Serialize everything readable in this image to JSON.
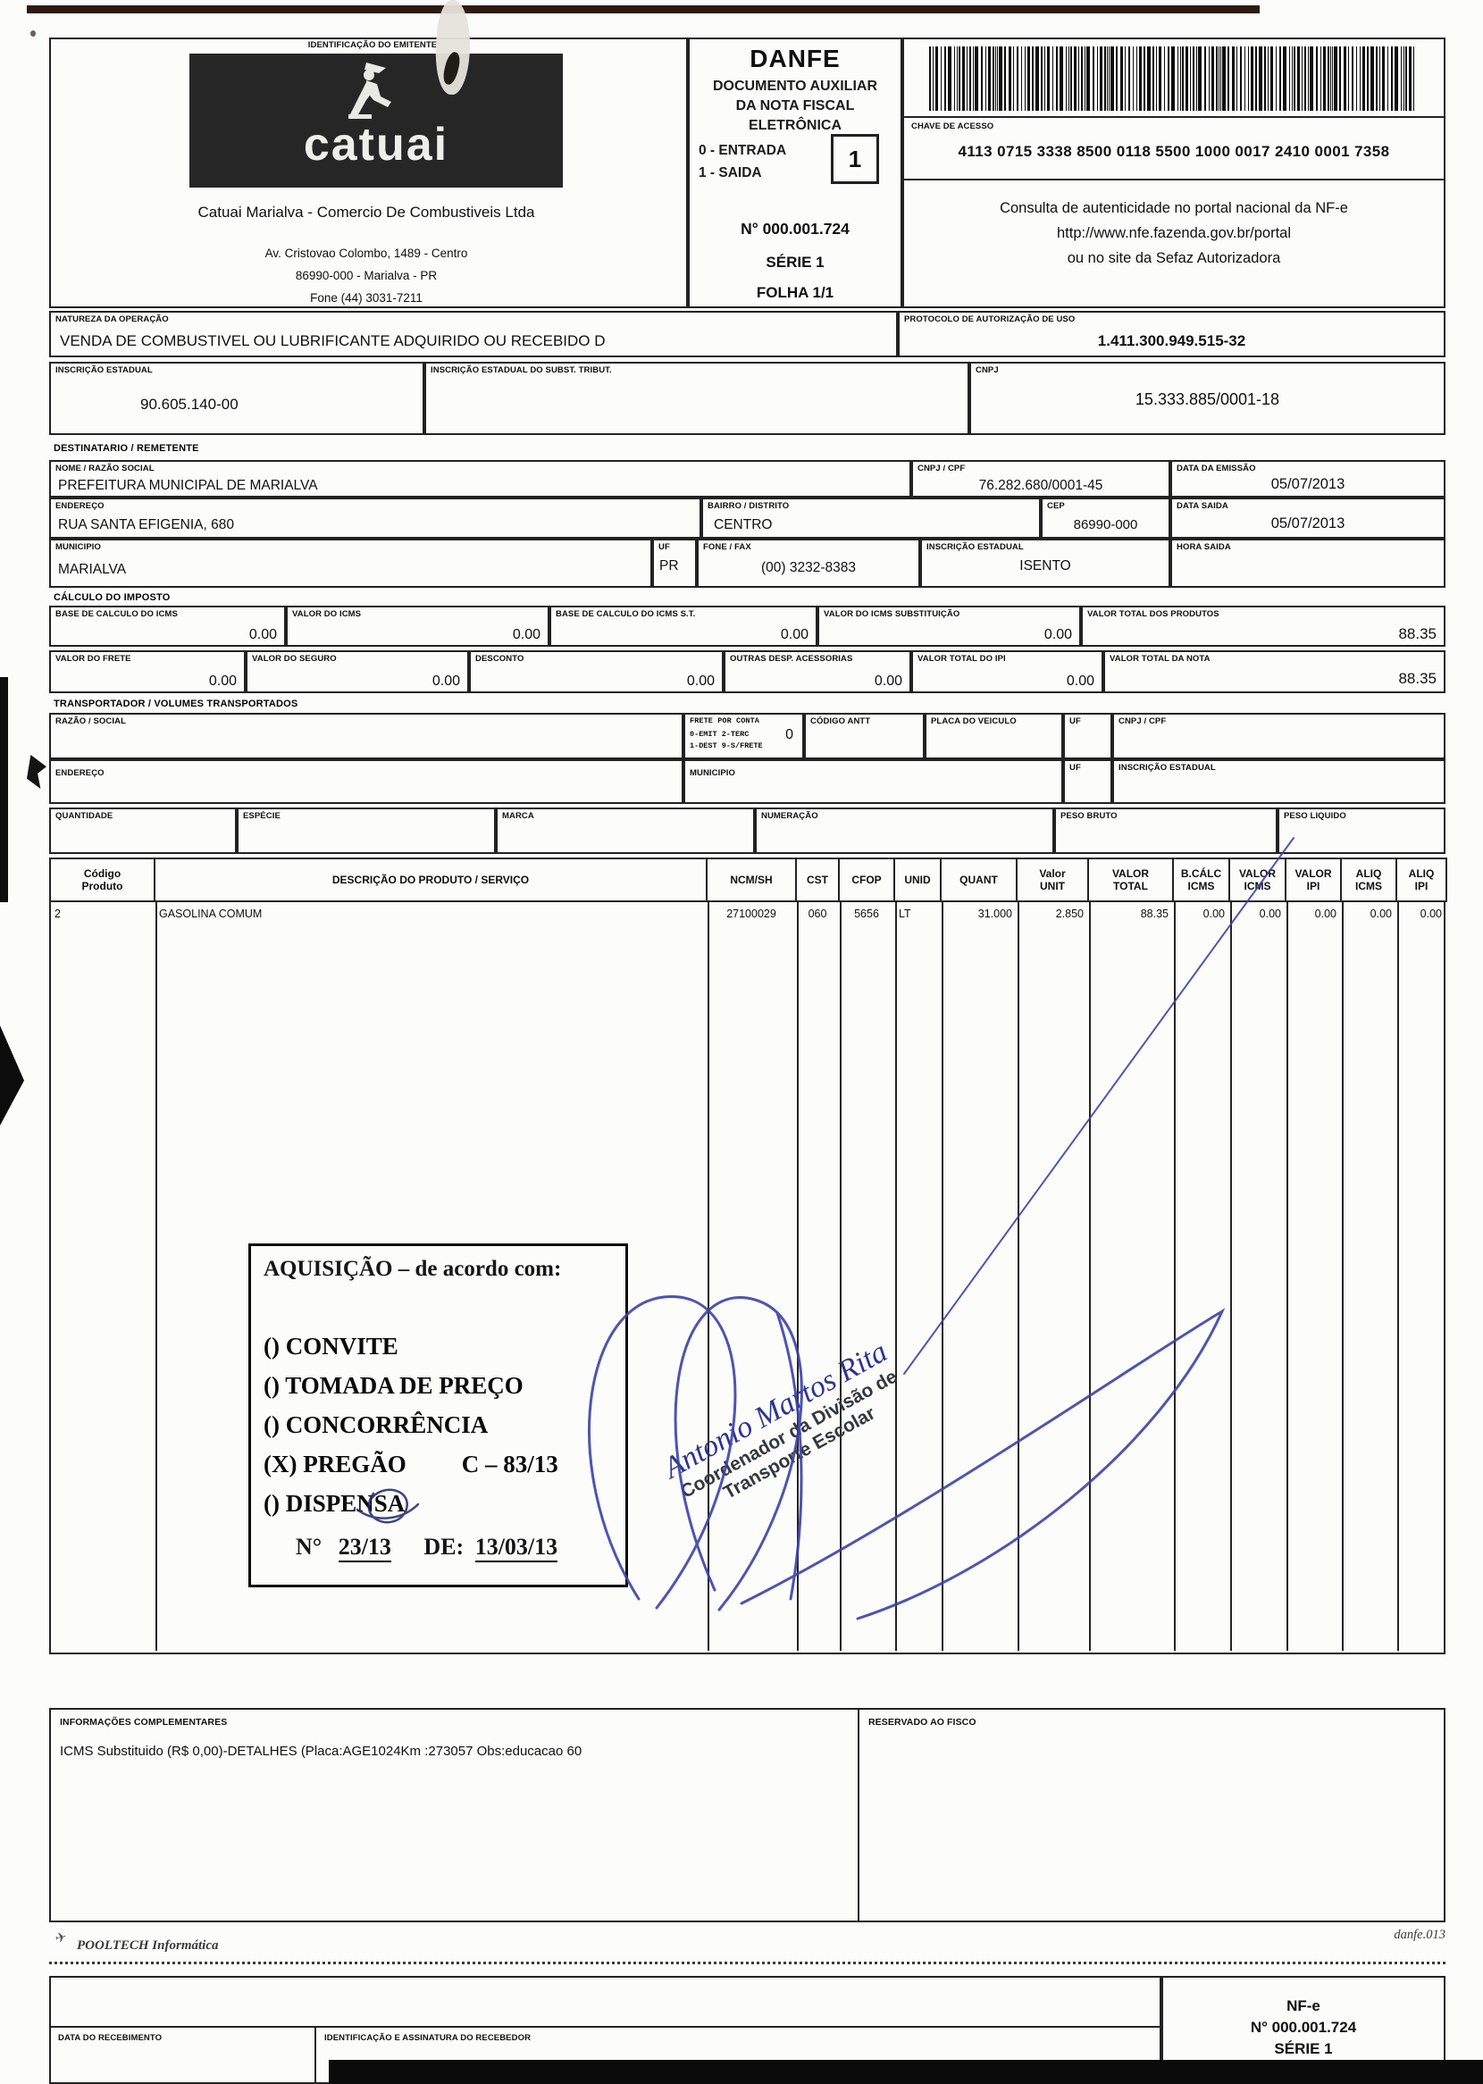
{
  "header": {
    "emitente_label": "IDENTIFICAÇÃO DO EMITENTE",
    "logo_text": "catuai",
    "company_name": "Catuai Marialva - Comercio De Combustiveis Ltda",
    "address1": "Av. Cristovao Colombo, 1489 - Centro",
    "address2": "86990-000 - Marialva - PR",
    "address3": "Fone (44) 3031-7211",
    "danfe_title": "DANFE",
    "danfe_subtitle": "DOCUMENTO AUXILIAR\nDA NOTA FISCAL\nELETRÔNICA",
    "entrada_label": "0 - ENTRADA",
    "saida_label": "1 - SAIDA",
    "tipo_value": "1",
    "nf_number": "N° 000.001.724",
    "serie": "SÉRIE 1",
    "folha": "FOLHA 1/1",
    "chave_label": "CHAVE DE ACESSO",
    "chave_value": "4113 0715 3338 8500 0118 5500 1000 0017 2410 0001 7358",
    "consulta1": "Consulta de autenticidade no portal nacional da NF-e",
    "consulta2": "http://www.nfe.fazenda.gov.br/portal",
    "consulta3": "ou no site da Sefaz Autorizadora"
  },
  "natureza": {
    "label": "NATUREZA DA OPERAÇÃO",
    "value": "VENDA DE COMBUSTIVEL OU LUBRIFICANTE ADQUIRIDO OU RECEBIDO D",
    "protocolo_label": "PROTOCOLO DE AUTORIZAÇÃO DE USO",
    "protocolo_value": "1.411.300.949.515-32"
  },
  "inscricao": {
    "ie_label": "INSCRIÇÃO ESTADUAL",
    "ie_value": "90.605.140-00",
    "iest_label": "INSCRIÇÃO ESTADUAL DO SUBST. TRIBUT.",
    "iest_value": "",
    "cnpj_label": "CNPJ",
    "cnpj_value": "15.333.885/0001-18"
  },
  "destinatario": {
    "section_label": "DESTINATARIO / REMETENTE",
    "nome_label": "NOME / RAZÃO SOCIAL",
    "nome": "PREFEITURA MUNICIPAL DE MARIALVA",
    "cnpj_label": "CNPJ / CPF",
    "cnpj": "76.282.680/0001-45",
    "emissao_label": "DATA DA EMISSÃO",
    "emissao": "05/07/2013",
    "endereco_label": "ENDEREÇO",
    "endereco": "RUA SANTA EFIGENIA, 680",
    "bairro_label": "BAIRRO / DISTRITO",
    "bairro": "CENTRO",
    "cep_label": "CEP",
    "cep": "86990-000",
    "saida_label": "DATA SAIDA",
    "saida": "05/07/2013",
    "municipio_label": "MUNICIPIO",
    "municipio": "MARIALVA",
    "uf_label": "UF",
    "uf": "PR",
    "fone_label": "FONE / FAX",
    "fone": "(00) 3232-8383",
    "ie_label": "INSCRIÇÃO ESTADUAL",
    "ie": "ISENTO",
    "hora_label": "HORA SAIDA",
    "hora": ""
  },
  "imposto": {
    "section_label": "CÁLCULO DO IMPOSTO",
    "bc_icms_label": "BASE DE CALCULO DO ICMS",
    "bc_icms": "0.00",
    "v_icms_label": "VALOR DO ICMS",
    "v_icms": "0.00",
    "bc_st_label": "BASE DE CALCULO DO ICMS S.T.",
    "bc_st": "0.00",
    "v_st_label": "VALOR DO ICMS SUBSTITUIÇÃO",
    "v_st": "0.00",
    "v_prod_label": "VALOR TOTAL DOS PRODUTOS",
    "v_prod": "88.35",
    "frete_label": "VALOR DO FRETE",
    "frete": "0.00",
    "seguro_label": "VALOR DO SEGURO",
    "seguro": "0.00",
    "desconto_label": "DESCONTO",
    "desconto": "0.00",
    "outras_label": "OUTRAS DESP. ACESSORIAS",
    "outras": "0.00",
    "ipi_label": "VALOR TOTAL DO IPI",
    "ipi": "0.00",
    "v_nota_label": "VALOR TOTAL DA NOTA",
    "v_nota": "88.35"
  },
  "transporte": {
    "section_label": "TRANSPORTADOR / VOLUMES TRANSPORTADOS",
    "razao_label": "RAZÃO / SOCIAL",
    "razao": "",
    "frete_conta_label": "FRETE POR CONTA",
    "frete_conta_legend": "0-EMIT 2-TERC\n1-DEST 9-S/FRETE",
    "frete_conta_value": "0",
    "antt_label": "CÓDIGO ANTT",
    "antt": "",
    "placa_label": "PLACA DO VEICULO",
    "placa": "",
    "uf1_label": "UF",
    "uf1": "",
    "cnpj_label": "CNPJ / CPF",
    "cnpj": "",
    "endereco_label": "ENDEREÇO",
    "endereco": "",
    "municipio_label": "MUNICIPIO",
    "municipio": "",
    "uf2_label": "UF",
    "uf2": "",
    "ie_label": "INSCRIÇÃO ESTADUAL",
    "ie": "",
    "quantidade_label": "QUANTIDADE",
    "quantidade": "",
    "especie_label": "ESPÉCIE",
    "especie": "",
    "marca_label": "MARCA",
    "marca": "",
    "numeracao_label": "NUMERAÇÃO",
    "numeracao": "",
    "peso_bruto_label": "PESO BRUTO",
    "peso_bruto": "",
    "peso_liquido_label": "PESO LIQUIDO",
    "peso_liquido": ""
  },
  "produtos": {
    "col_headers": [
      "Código\nProduto",
      "DESCRIÇÃO DO PRODUTO / SERVIÇO",
      "NCM/SH",
      "CST",
      "CFOP",
      "UNID",
      "QUANT",
      "Valor\nUNIT",
      "VALOR\nTOTAL",
      "B.CÁLC\nICMS",
      "VALOR\nICMS",
      "VALOR\nIPI",
      "ALIQ\nICMS",
      "ALIQ\nIPI"
    ],
    "rows": [
      [
        "2",
        "GASOLINA COMUM",
        "27100029",
        "060",
        "5656",
        "LT",
        "31.000",
        "2.850",
        "88.35",
        "0.00",
        "0.00",
        "0.00",
        "0.00",
        "0.00"
      ]
    ]
  },
  "stamp": {
    "title": "AQUISIÇÃO – de acordo com:",
    "items": [
      "() CONVITE",
      "() TOMADA DE PREÇO",
      "() CONCORRÊNCIA",
      "(X) PREGÃO",
      "() DISPENSA"
    ],
    "pregao_code": "C – 83/13",
    "num_label": "N°",
    "num_value": "23/13",
    "de_label": "DE:",
    "de_value": "13/03/13"
  },
  "signature": {
    "name": "Antonio Martos Rita",
    "role1": "Coordenador da Divisão de",
    "role2": "Transporte Escolar"
  },
  "info": {
    "label": "INFORMAÇÕES COMPLEMENTARES",
    "text": "ICMS Substituido (R$ 0,00)-DETALHES (Placa:AGE1024Km :273057 Obs:educacao 60",
    "fisco_label": "RESERVADO AO FISCO"
  },
  "footer": {
    "vendor": "POOLTECH Informática",
    "doc_ref": "danfe.013",
    "data_receb_label": "DATA DO RECEBIMENTO",
    "ident_label": "IDENTIFICAÇÃO E ASSINATURA DO RECEBEDOR",
    "nfe1": "NF-e",
    "nfe2": "N° 000.001.724",
    "nfe3": "SÉRIE 1"
  }
}
